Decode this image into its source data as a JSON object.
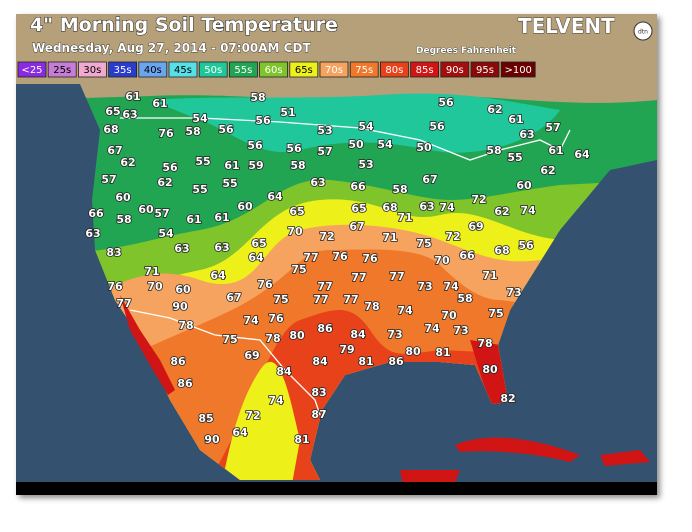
{
  "header": {
    "title": "4\" Morning Soil Temperature",
    "subtitle": "Wednesday, Aug 27, 2014 - 07:00AM CDT",
    "units": "Degrees Fahrenheit",
    "logo": "TELVENT",
    "logo_badge": "dtn"
  },
  "legend": [
    {
      "label": "<25",
      "color": "#8a2be2"
    },
    {
      "label": "25s",
      "color": "#c77dd6"
    },
    {
      "label": "30s",
      "color": "#f2a9cf"
    },
    {
      "label": "35s",
      "color": "#2a3ccc"
    },
    {
      "label": "40s",
      "color": "#6aa6f0"
    },
    {
      "label": "45s",
      "color": "#57e0e8"
    },
    {
      "label": "50s",
      "color": "#1fc79a"
    },
    {
      "label": "55s",
      "color": "#22a552"
    },
    {
      "label": "60s",
      "color": "#7fc42b"
    },
    {
      "label": "65s",
      "color": "#eef01a"
    },
    {
      "label": "70s",
      "color": "#f6a35f"
    },
    {
      "label": "75s",
      "color": "#f0782a"
    },
    {
      "label": "80s",
      "color": "#e8421a"
    },
    {
      "label": "85s",
      "color": "#d11414"
    },
    {
      "label": "90s",
      "color": "#a30e0e"
    },
    {
      "label": "95s",
      "color": "#8a0a0a"
    },
    {
      "label": ">100",
      "color": "#6b0000"
    }
  ],
  "readings": [
    61,
    61,
    58,
    51,
    56,
    54,
    56,
    65,
    63,
    68,
    76,
    58,
    53,
    54,
    56,
    56,
    62,
    61,
    63,
    57,
    67,
    62,
    56,
    55,
    56,
    56,
    57,
    50,
    54,
    50,
    58,
    55,
    61,
    64,
    61,
    59,
    58,
    53,
    62,
    55,
    55,
    57,
    60,
    63,
    66,
    58,
    67,
    60,
    62,
    66,
    58,
    60,
    57,
    61,
    60,
    61,
    64,
    65,
    65,
    68,
    71,
    63,
    74,
    72,
    62,
    74,
    63,
    54,
    63,
    63,
    65,
    64,
    70,
    72,
    67,
    71,
    75,
    72,
    69,
    68,
    56,
    83,
    70,
    66,
    75,
    77,
    76,
    76,
    77,
    71,
    71,
    70,
    64,
    76,
    77,
    77,
    73,
    74,
    73,
    76,
    60,
    67,
    75,
    77,
    77,
    78,
    74,
    58,
    77,
    90,
    75,
    70,
    78,
    74,
    76,
    80,
    86,
    84,
    73,
    74,
    75,
    78,
    73,
    78,
    69,
    84,
    79,
    81,
    80,
    81,
    86,
    86,
    84,
    80,
    86,
    83,
    82,
    74,
    87,
    72,
    85,
    64,
    90,
    81
  ]
}
